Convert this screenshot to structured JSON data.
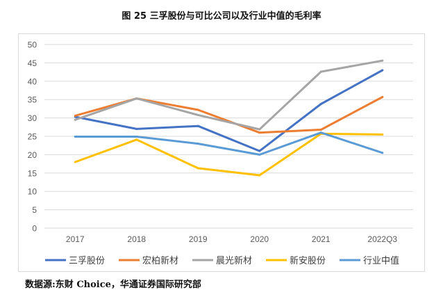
{
  "header": {
    "title": "图 25 三孚股份与可比公司以及行业中值的毛利率"
  },
  "footer": {
    "source": "数据源:东财 Choice，华通证券国际研究部"
  },
  "chart_data": {
    "type": "line",
    "title": "图 25 三孚股份与可比公司以及行业中值的毛利率",
    "xlabel": "",
    "ylabel": "",
    "categories": [
      "2017",
      "2018",
      "2019",
      "2020",
      "2021",
      "2022Q3"
    ],
    "yticks": [
      "0",
      "5",
      "10",
      "15",
      "20",
      "25",
      "30",
      "35",
      "40",
      "45",
      "50"
    ],
    "ylim": [
      0,
      50
    ],
    "grid": true,
    "legend_position": "bottom",
    "series": [
      {
        "name": "三孚股份",
        "color": "#4472C4",
        "values": [
          30.3,
          27.0,
          27.8,
          21.0,
          33.8,
          43.0
        ]
      },
      {
        "name": "宏柏新材",
        "color": "#ED7D31",
        "values": [
          30.6,
          35.3,
          32.2,
          26.0,
          26.8,
          35.7
        ]
      },
      {
        "name": "晨光新材",
        "color": "#A5A5A5",
        "values": [
          29.5,
          35.3,
          30.8,
          26.9,
          42.6,
          45.6
        ]
      },
      {
        "name": "新安股份",
        "color": "#FFC000",
        "values": [
          18.0,
          24.1,
          16.3,
          14.4,
          25.7,
          25.5
        ]
      },
      {
        "name": "行业中值",
        "color": "#5B9BD5",
        "values": [
          24.9,
          24.9,
          23.0,
          20.0,
          26.0,
          20.5
        ]
      }
    ]
  }
}
